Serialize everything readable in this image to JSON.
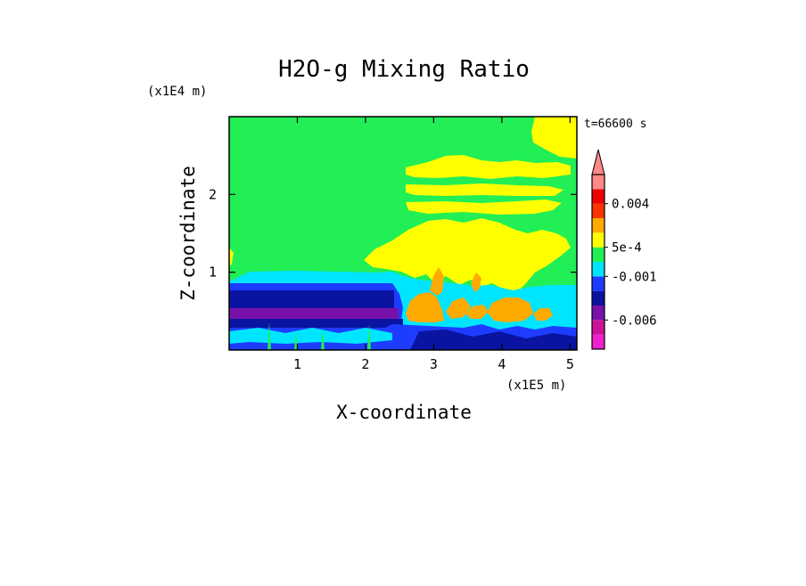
{
  "chart_data": {
    "type": "heatmap",
    "title": "H2O-g Mixing Ratio",
    "xlabel": "X-coordinate",
    "ylabel": "Z-coordinate",
    "x_scale_label": "(x1E5 m)",
    "y_scale_label": "(x1E4 m)",
    "time_label": "t=66600 s",
    "xlim": [
      0,
      5.1
    ],
    "ylim": [
      0,
      3.0
    ],
    "x_ticks": [
      1,
      2,
      3,
      4,
      5
    ],
    "y_ticks": [
      1,
      2
    ],
    "grid": false,
    "legend_position": "right colorbar with extend arrow on top",
    "colorbar": {
      "colors": [
        "#ee22cc",
        "#cc1199",
        "#7711aa",
        "#0a14a0",
        "#1e3cff",
        "#00e5ff",
        "#22ee55",
        "#ffff00",
        "#ffaa00",
        "#ff3300",
        "#ee0000",
        "#ff8888"
      ],
      "labels": [
        {
          "text": "0.004",
          "value": 0.004
        },
        {
          "text": "5e-4",
          "value": 0.0005
        },
        {
          "text": "-0.001",
          "value": -0.001
        },
        {
          "text": "-0.006",
          "value": -0.006
        }
      ]
    },
    "field_summary": {
      "background_level": "#22ee55",
      "upper_features": "#ffff00",
      "convective_cores": "#ffaa00",
      "low_layer_moist": "#00e5ff",
      "low_layer_dry": "#1e3cff"
    }
  }
}
